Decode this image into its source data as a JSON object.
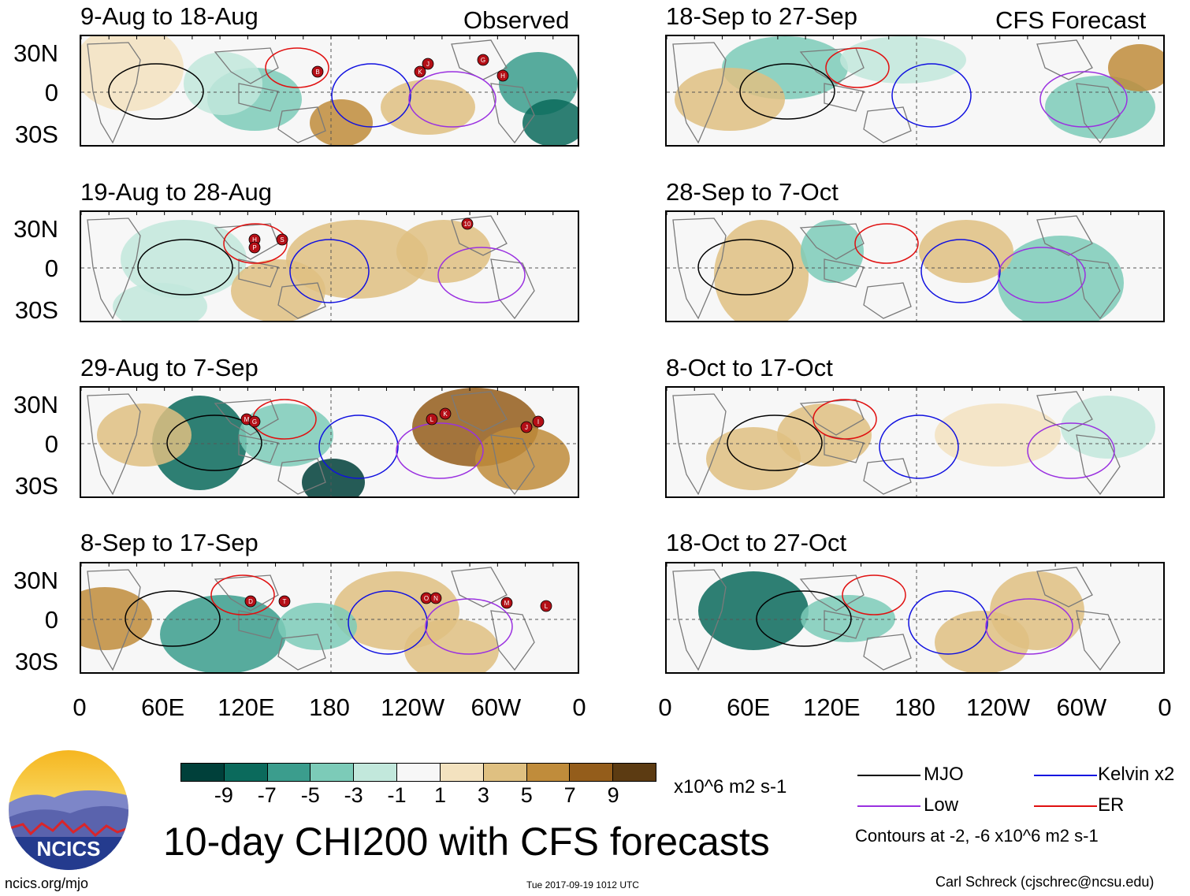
{
  "header": {
    "observed_label": "Observed",
    "forecast_label": "CFS Forecast"
  },
  "panels": [
    {
      "title": "9-Aug to 18-Aug",
      "kind": "observed"
    },
    {
      "title": "19-Aug to 28-Aug",
      "kind": "observed"
    },
    {
      "title": "29-Aug to 7-Sep",
      "kind": "observed"
    },
    {
      "title": "8-Sep to 17-Sep",
      "kind": "observed"
    },
    {
      "title": "18-Sep to 27-Sep",
      "kind": "forecast"
    },
    {
      "title": "28-Sep to 7-Oct",
      "kind": "forecast"
    },
    {
      "title": "8-Oct to 17-Oct",
      "kind": "forecast"
    },
    {
      "title": "18-Oct to 27-Oct",
      "kind": "forecast"
    }
  ],
  "lat_labels": [
    "30N",
    "0",
    "30S"
  ],
  "lon_labels": [
    "0",
    "60E",
    "120E",
    "180",
    "120W",
    "60W",
    "0"
  ],
  "colorbar": {
    "colors": [
      "#00403a",
      "#0b6a5c",
      "#3b9d8d",
      "#7ccbb8",
      "#c2e8dc",
      "#f7f7f7",
      "#f3e2bf",
      "#dfc081",
      "#c08c3b",
      "#945d1b",
      "#5c3b12"
    ],
    "ticks": [
      "-9",
      "-7",
      "-5",
      "-3",
      "-1",
      "1",
      "3",
      "5",
      "7",
      "9"
    ],
    "units": "x10^6 m2 s-1"
  },
  "legend": {
    "items": [
      {
        "label": "MJO",
        "color": "#000000"
      },
      {
        "label": "Kelvin x2",
        "color": "#1010e0"
      },
      {
        "label": "Low",
        "color": "#9a30e0"
      },
      {
        "label": "ER",
        "color": "#e01010"
      }
    ],
    "contours_note": "Contours at -2, -6 x10^6 m2 s-1"
  },
  "storm_markers": [
    {
      "panel": 0,
      "ids": [
        "B",
        "K",
        "J",
        "G",
        "H"
      ]
    },
    {
      "panel": 1,
      "ids": [
        "H",
        "P",
        "S",
        "10"
      ]
    },
    {
      "panel": 2,
      "ids": [
        "M",
        "G",
        "L",
        "K",
        "J",
        "I"
      ]
    },
    {
      "panel": 3,
      "ids": [
        "D",
        "T",
        "O",
        "N",
        "M",
        "L"
      ]
    }
  ],
  "title": "10-day CHI200 with CFS forecasts",
  "logo_text": "NCICS",
  "footer": {
    "left": "ncics.org/mjo",
    "center": "Tue 2017-09-19 1012 UTC",
    "right": "Carl Schreck (cjschrec@ncsu.edu)"
  }
}
